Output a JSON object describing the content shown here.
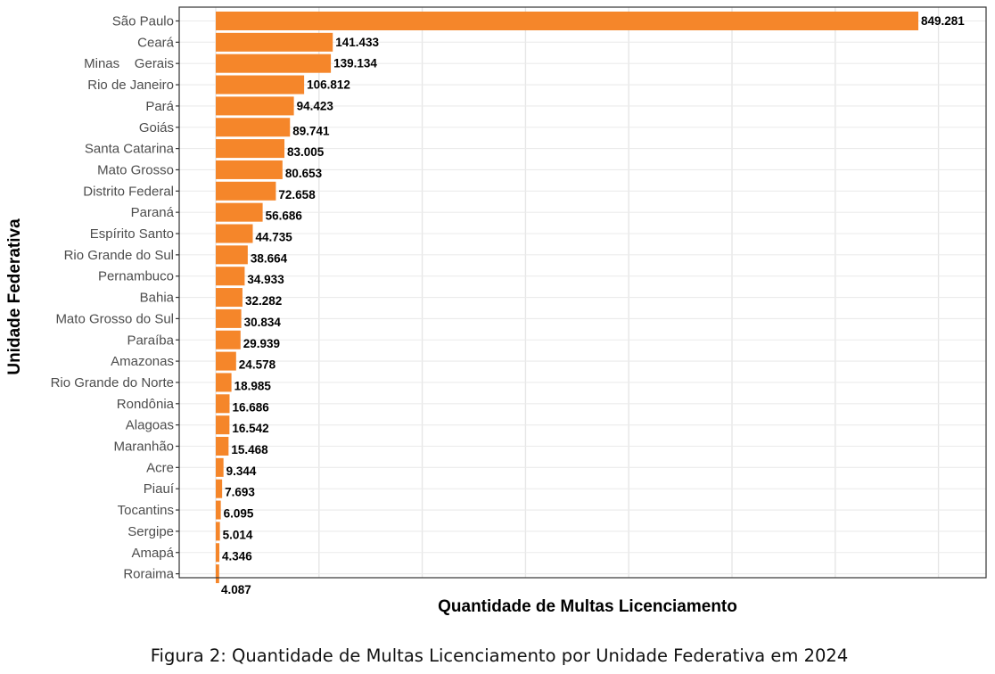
{
  "chart_data": {
    "type": "bar",
    "orientation": "horizontal",
    "xlabel": "Quantidade de Multas Licenciamento",
    "ylabel": "Unidade Federativa",
    "caption": "Figura 2: Quantidade de Multas Licenciamento por Unidade Federativa em 2024",
    "bar_color": "#F5862A",
    "grid": true,
    "xlim": [
      0,
      900000
    ],
    "categories": [
      "São Paulo",
      "Ceará",
      "Minas    Gerais",
      "Rio de Janeiro",
      "Pará",
      "Goiás",
      "Santa Catarina",
      "Mato Grosso",
      "Distrito Federal",
      "Paraná",
      "Espírito Santo",
      "Rio Grande do Sul",
      "Pernambuco",
      "Bahia",
      "Mato Grosso do Sul",
      "Paraíba",
      "Amazonas",
      "Rio Grande do Norte",
      "Rondônia",
      "Alagoas",
      "Maranhão",
      "Acre",
      "Piauí",
      "Tocantins",
      "Sergipe",
      "Amapá",
      "Roraima"
    ],
    "values": [
      849281,
      141433,
      139134,
      106812,
      94423,
      89741,
      83005,
      80653,
      72658,
      56686,
      44735,
      38664,
      34933,
      32282,
      30834,
      29939,
      24578,
      18985,
      16686,
      16542,
      15468,
      9344,
      7693,
      6095,
      5014,
      4346,
      4087
    ],
    "value_labels": [
      "849.281",
      "141.433",
      "139.134",
      "106.812",
      "94.423",
      "89.741",
      "83.005",
      "80.653",
      "72.658",
      "56.686",
      "44.735",
      "38.664",
      "34.933",
      "32.282",
      "30.834",
      "29.939",
      "24.578",
      "18.985",
      "16.686",
      "16.542",
      "15.468",
      "9.344",
      "7.693",
      "6.095",
      "5.014",
      "4.346",
      "4.087"
    ]
  }
}
